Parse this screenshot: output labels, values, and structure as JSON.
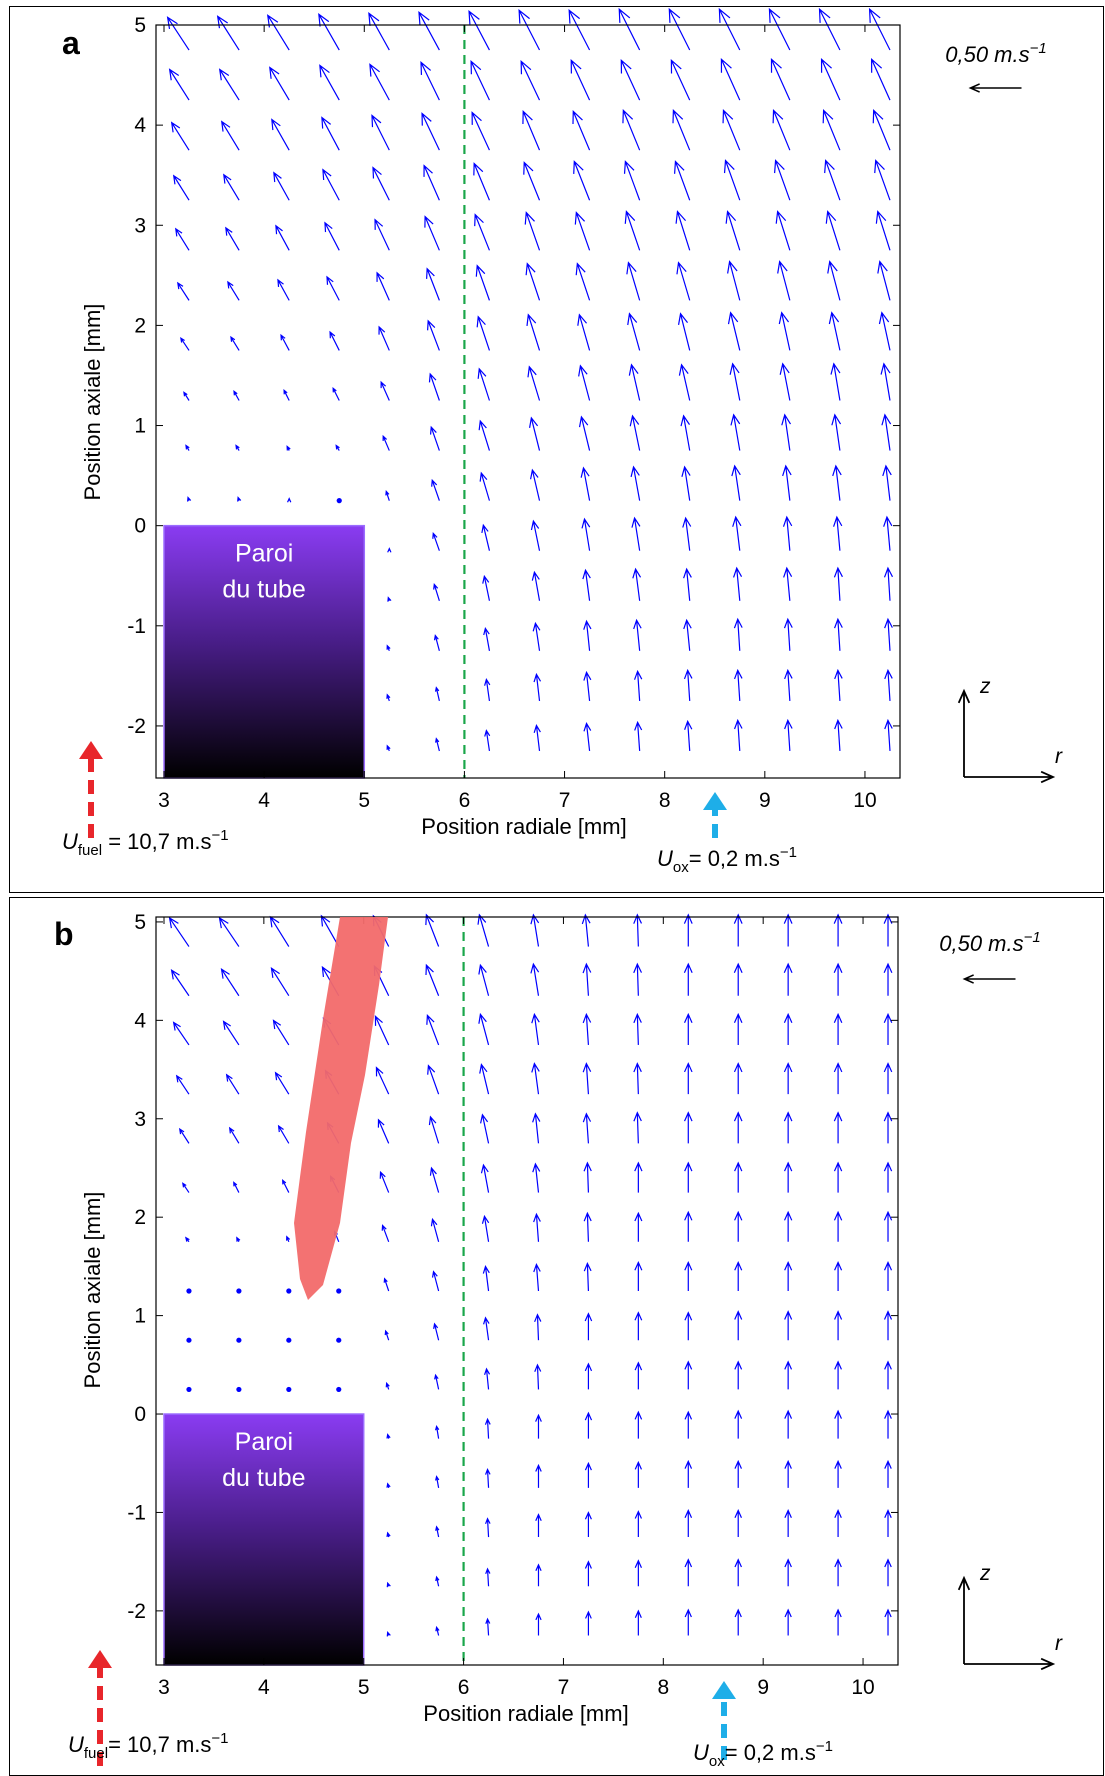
{
  "chart_data": [
    {
      "type": "quiver",
      "panel_label": "a",
      "color": "#0000ff",
      "xlabel": "Position radiale [mm]",
      "ylabel": "Position axiale [mm]",
      "xlim": [
        2.92,
        10.35
      ],
      "ylim": [
        -2.52,
        5
      ],
      "xticks": [
        3,
        4,
        5,
        6,
        7,
        8,
        9,
        10
      ],
      "yticks": [
        -2,
        -1,
        0,
        1,
        2,
        3,
        4,
        5
      ],
      "x": [
        3.25,
        3.75,
        4.25,
        4.75,
        5.25,
        5.75,
        6.25,
        6.75,
        7.25,
        7.75,
        8.25,
        8.75,
        9.25,
        9.75,
        10.25
      ],
      "y": [
        -2.25,
        -1.75,
        -1.25,
        -0.75,
        -0.25,
        0.25,
        0.75,
        1.25,
        1.75,
        2.25,
        2.75,
        3.25,
        3.75,
        4.25,
        4.75
      ],
      "u": [
        [
          null,
          null,
          null,
          null,
          -0.02,
          -0.03,
          -0.03,
          -0.03,
          -0.03,
          -0.02,
          -0.02,
          -0.02,
          -0.02,
          -0.02,
          -0.02
        ],
        [
          null,
          null,
          null,
          null,
          -0.02,
          -0.03,
          -0.03,
          -0.03,
          -0.03,
          -0.02,
          -0.02,
          -0.02,
          -0.02,
          -0.02,
          -0.02
        ],
        [
          null,
          null,
          null,
          null,
          -0.02,
          -0.04,
          -0.04,
          -0.04,
          -0.03,
          -0.03,
          -0.03,
          -0.02,
          -0.02,
          -0.02,
          -0.02
        ],
        [
          null,
          null,
          null,
          null,
          -0.01,
          -0.05,
          -0.05,
          -0.05,
          -0.04,
          -0.04,
          -0.03,
          -0.03,
          -0.03,
          -0.02,
          -0.02
        ],
        [
          null,
          null,
          null,
          null,
          0,
          -0.06,
          -0.06,
          -0.06,
          -0.05,
          -0.05,
          -0.04,
          -0.04,
          -0.03,
          -0.03,
          -0.03
        ],
        [
          -0.01,
          -0.01,
          0,
          0,
          -0.03,
          -0.07,
          -0.08,
          -0.07,
          -0.06,
          -0.06,
          -0.05,
          -0.05,
          -0.04,
          -0.04,
          -0.04
        ],
        [
          -0.03,
          -0.03,
          -0.02,
          -0.03,
          -0.06,
          -0.08,
          -0.09,
          -0.08,
          -0.08,
          -0.07,
          -0.06,
          -0.06,
          -0.05,
          -0.05,
          -0.05
        ],
        [
          -0.05,
          -0.05,
          -0.05,
          -0.06,
          -0.08,
          -0.09,
          -0.1,
          -0.1,
          -0.09,
          -0.08,
          -0.08,
          -0.07,
          -0.07,
          -0.06,
          -0.06
        ],
        [
          -0.08,
          -0.08,
          -0.08,
          -0.09,
          -0.1,
          -0.11,
          -0.11,
          -0.11,
          -0.1,
          -0.1,
          -0.09,
          -0.09,
          -0.08,
          -0.08,
          -0.08
        ],
        [
          -0.11,
          -0.11,
          -0.11,
          -0.12,
          -0.12,
          -0.12,
          -0.12,
          -0.12,
          -0.12,
          -0.11,
          -0.11,
          -0.1,
          -0.1,
          -0.1,
          -0.1
        ],
        [
          -0.13,
          -0.13,
          -0.13,
          -0.14,
          -0.14,
          -0.14,
          -0.14,
          -0.13,
          -0.13,
          -0.13,
          -0.12,
          -0.12,
          -0.12,
          -0.12,
          -0.12
        ],
        [
          -0.15,
          -0.15,
          -0.15,
          -0.16,
          -0.16,
          -0.15,
          -0.15,
          -0.15,
          -0.15,
          -0.14,
          -0.14,
          -0.14,
          -0.14,
          -0.14,
          -0.14
        ],
        [
          -0.17,
          -0.17,
          -0.17,
          -0.17,
          -0.17,
          -0.17,
          -0.17,
          -0.16,
          -0.16,
          -0.16,
          -0.16,
          -0.16,
          -0.16,
          -0.16,
          -0.16
        ],
        [
          -0.19,
          -0.19,
          -0.19,
          -0.19,
          -0.19,
          -0.18,
          -0.18,
          -0.18,
          -0.18,
          -0.18,
          -0.18,
          -0.18,
          -0.18,
          -0.18,
          -0.18
        ],
        [
          -0.21,
          -0.21,
          -0.21,
          -0.2,
          -0.2,
          -0.2,
          -0.2,
          -0.2,
          -0.2,
          -0.2,
          -0.2,
          -0.2,
          -0.2,
          -0.2,
          -0.2
        ]
      ],
      "v": [
        [
          null,
          null,
          null,
          null,
          0.05,
          0.12,
          0.2,
          0.25,
          0.27,
          0.28,
          0.29,
          0.3,
          0.3,
          0.3,
          0.3
        ],
        [
          null,
          null,
          null,
          null,
          0.06,
          0.13,
          0.21,
          0.26,
          0.28,
          0.29,
          0.3,
          0.3,
          0.3,
          0.3,
          0.3
        ],
        [
          null,
          null,
          null,
          null,
          0.05,
          0.15,
          0.22,
          0.27,
          0.29,
          0.3,
          0.3,
          0.31,
          0.31,
          0.31,
          0.31
        ],
        [
          null,
          null,
          null,
          null,
          0.03,
          0.16,
          0.24,
          0.28,
          0.3,
          0.31,
          0.31,
          0.32,
          0.32,
          0.32,
          0.32
        ],
        [
          null,
          null,
          null,
          null,
          0.02,
          0.17,
          0.25,
          0.29,
          0.31,
          0.32,
          0.32,
          0.33,
          0.33,
          0.33,
          0.33
        ],
        [
          0.03,
          0.03,
          0.02,
          0,
          0.09,
          0.2,
          0.27,
          0.3,
          0.32,
          0.33,
          0.33,
          0.34,
          0.34,
          0.34,
          0.34
        ],
        [
          0.05,
          0.05,
          0.04,
          0.05,
          0.14,
          0.23,
          0.29,
          0.32,
          0.33,
          0.34,
          0.34,
          0.35,
          0.35,
          0.35,
          0.35
        ],
        [
          0.08,
          0.09,
          0.1,
          0.12,
          0.18,
          0.26,
          0.31,
          0.33,
          0.34,
          0.35,
          0.35,
          0.36,
          0.36,
          0.36,
          0.36
        ],
        [
          0.12,
          0.13,
          0.15,
          0.18,
          0.23,
          0.29,
          0.33,
          0.35,
          0.35,
          0.36,
          0.36,
          0.37,
          0.37,
          0.37,
          0.37
        ],
        [
          0.17,
          0.18,
          0.2,
          0.23,
          0.27,
          0.31,
          0.34,
          0.36,
          0.36,
          0.37,
          0.37,
          0.38,
          0.38,
          0.38,
          0.38
        ],
        [
          0.21,
          0.22,
          0.24,
          0.27,
          0.3,
          0.33,
          0.35,
          0.37,
          0.37,
          0.38,
          0.38,
          0.38,
          0.38,
          0.38,
          0.38
        ],
        [
          0.24,
          0.25,
          0.27,
          0.3,
          0.32,
          0.34,
          0.36,
          0.37,
          0.38,
          0.38,
          0.38,
          0.39,
          0.39,
          0.39,
          0.39
        ],
        [
          0.27,
          0.28,
          0.3,
          0.32,
          0.34,
          0.36,
          0.37,
          0.38,
          0.38,
          0.39,
          0.39,
          0.39,
          0.39,
          0.39,
          0.39
        ],
        [
          0.3,
          0.3,
          0.32,
          0.34,
          0.35,
          0.37,
          0.38,
          0.38,
          0.39,
          0.39,
          0.39,
          0.4,
          0.4,
          0.4,
          0.4
        ],
        [
          0.32,
          0.33,
          0.34,
          0.35,
          0.36,
          0.37,
          0.38,
          0.39,
          0.39,
          0.4,
          0.4,
          0.4,
          0.4,
          0.4,
          0.4
        ]
      ],
      "reference": {
        "value": 0.5,
        "label": "0,50 m.s",
        "label_exp": "−1"
      },
      "tube": {
        "label": [
          "Paroi",
          "du tube"
        ]
      },
      "axes_icon": {
        "z": "z",
        "r": "r"
      },
      "inlets": [
        {
          "symbol": "U",
          "sub": "fuel",
          "text": " = 10,7 m.s",
          "sup": "−1",
          "color": "#e8262b"
        },
        {
          "symbol": "U",
          "sub": "ox",
          "text": "= 0,2 m.s",
          "sup": "−1",
          "color": "#1eaee8"
        }
      ]
    },
    {
      "type": "quiver",
      "panel_label": "b",
      "color": "#0000ff",
      "xlabel": "Position radiale [mm]",
      "ylabel": "Position axiale [mm]",
      "xlim": [
        2.92,
        10.35
      ],
      "ylim": [
        -2.55,
        5.05
      ],
      "xticks": [
        3,
        4,
        5,
        6,
        7,
        8,
        9,
        10
      ],
      "yticks": [
        -2,
        -1,
        0,
        1,
        2,
        3,
        4,
        5
      ],
      "x": [
        3.25,
        3.75,
        4.25,
        4.75,
        5.25,
        5.75,
        6.25,
        6.75,
        7.25,
        7.75,
        8.25,
        8.75,
        9.25,
        9.75,
        10.25
      ],
      "y": [
        -2.25,
        -1.75,
        -1.25,
        -0.75,
        -0.25,
        0.25,
        0.75,
        1.25,
        1.75,
        2.25,
        2.75,
        3.25,
        3.75,
        4.25,
        4.75
      ],
      "u": [
        [
          null,
          null,
          null,
          null,
          -0.01,
          -0.02,
          -0.01,
          0,
          0,
          0,
          0,
          0,
          0,
          0,
          0
        ],
        [
          null,
          null,
          null,
          null,
          -0.01,
          -0.02,
          -0.01,
          0,
          0,
          0,
          0,
          0,
          0,
          0,
          0
        ],
        [
          null,
          null,
          null,
          null,
          -0.01,
          -0.02,
          -0.01,
          0,
          0,
          0,
          0,
          0,
          0,
          0,
          0
        ],
        [
          null,
          null,
          null,
          null,
          -0.01,
          -0.02,
          -0.01,
          0,
          0,
          0,
          0,
          0,
          0,
          0,
          0
        ],
        [
          null,
          null,
          null,
          null,
          -0.01,
          -0.02,
          -0.01,
          0,
          0,
          0,
          0,
          0,
          0,
          0,
          0
        ],
        [
          0,
          0,
          0,
          0,
          -0.02,
          -0.03,
          -0.02,
          -0.01,
          0,
          0,
          0,
          0,
          0,
          0,
          0
        ],
        [
          0,
          0,
          0,
          0,
          -0.03,
          -0.04,
          -0.03,
          -0.01,
          0,
          0,
          0,
          0,
          0,
          0,
          0
        ],
        [
          -0.01,
          -0.01,
          0,
          0,
          -0.04,
          -0.05,
          -0.03,
          -0.02,
          -0.01,
          0,
          0,
          0,
          0,
          0,
          0
        ],
        [
          -0.03,
          -0.02,
          -0.02,
          -0.04,
          -0.06,
          -0.06,
          -0.04,
          -0.02,
          -0.01,
          0,
          0,
          0,
          0,
          0,
          0
        ],
        [
          -0.06,
          -0.05,
          -0.06,
          -0.08,
          -0.08,
          -0.07,
          -0.05,
          -0.03,
          -0.01,
          0,
          0,
          0,
          0,
          0,
          0
        ],
        [
          -0.09,
          -0.09,
          -0.1,
          -0.11,
          -0.1,
          -0.08,
          -0.06,
          -0.03,
          -0.02,
          -0.01,
          0,
          0,
          0,
          0,
          0
        ],
        [
          -0.12,
          -0.12,
          -0.13,
          -0.13,
          -0.12,
          -0.1,
          -0.07,
          -0.04,
          -0.02,
          -0.01,
          0,
          0,
          0,
          0,
          0
        ],
        [
          -0.15,
          -0.15,
          -0.15,
          -0.15,
          -0.13,
          -0.11,
          -0.08,
          -0.04,
          -0.02,
          -0.01,
          0,
          0,
          0,
          0,
          0
        ],
        [
          -0.17,
          -0.17,
          -0.17,
          -0.16,
          -0.14,
          -0.12,
          -0.08,
          -0.05,
          -0.02,
          -0.01,
          0,
          0,
          0,
          0,
          0
        ],
        [
          -0.19,
          -0.19,
          -0.18,
          -0.17,
          -0.15,
          -0.12,
          -0.09,
          -0.05,
          -0.03,
          -0.01,
          0,
          0,
          0,
          0,
          0
        ]
      ],
      "v": [
        [
          null,
          null,
          null,
          null,
          0.03,
          0.08,
          0.16,
          0.21,
          0.23,
          0.24,
          0.25,
          0.25,
          0.25,
          0.25,
          0.25
        ],
        [
          null,
          null,
          null,
          null,
          0.03,
          0.09,
          0.17,
          0.21,
          0.24,
          0.25,
          0.26,
          0.26,
          0.26,
          0.26,
          0.26
        ],
        [
          null,
          null,
          null,
          null,
          0.04,
          0.1,
          0.18,
          0.22,
          0.24,
          0.25,
          0.26,
          0.26,
          0.26,
          0.26,
          0.26
        ],
        [
          null,
          null,
          null,
          null,
          0.04,
          0.11,
          0.18,
          0.22,
          0.24,
          0.25,
          0.26,
          0.26,
          0.26,
          0.26,
          0.26
        ],
        [
          null,
          null,
          null,
          null,
          0.04,
          0.12,
          0.19,
          0.23,
          0.25,
          0.26,
          0.26,
          0.27,
          0.27,
          0.27,
          0.27
        ],
        [
          0,
          0,
          0,
          0,
          0.06,
          0.14,
          0.2,
          0.24,
          0.25,
          0.26,
          0.27,
          0.27,
          0.27,
          0.27,
          0.27
        ],
        [
          0,
          0,
          0,
          0,
          0.09,
          0.16,
          0.22,
          0.25,
          0.26,
          0.27,
          0.27,
          0.28,
          0.28,
          0.28,
          0.28
        ],
        [
          0.01,
          0.01,
          0,
          0,
          0.12,
          0.19,
          0.24,
          0.26,
          0.27,
          0.28,
          0.28,
          0.28,
          0.28,
          0.28,
          0.28
        ],
        [
          0.04,
          0.04,
          0.05,
          0.1,
          0.16,
          0.22,
          0.25,
          0.27,
          0.28,
          0.28,
          0.29,
          0.29,
          0.29,
          0.29,
          0.29
        ],
        [
          0.09,
          0.1,
          0.12,
          0.16,
          0.2,
          0.24,
          0.27,
          0.28,
          0.29,
          0.29,
          0.29,
          0.29,
          0.29,
          0.29,
          0.29
        ],
        [
          0.14,
          0.15,
          0.17,
          0.2,
          0.23,
          0.26,
          0.28,
          0.29,
          0.29,
          0.3,
          0.3,
          0.3,
          0.3,
          0.3,
          0.3
        ],
        [
          0.18,
          0.19,
          0.21,
          0.23,
          0.26,
          0.28,
          0.29,
          0.3,
          0.3,
          0.3,
          0.3,
          0.3,
          0.3,
          0.3,
          0.3
        ],
        [
          0.22,
          0.23,
          0.24,
          0.26,
          0.28,
          0.29,
          0.3,
          0.3,
          0.3,
          0.3,
          0.3,
          0.3,
          0.3,
          0.3,
          0.3
        ],
        [
          0.25,
          0.26,
          0.27,
          0.28,
          0.29,
          0.3,
          0.3,
          0.31,
          0.31,
          0.31,
          0.31,
          0.31,
          0.31,
          0.31,
          0.31
        ],
        [
          0.28,
          0.28,
          0.29,
          0.3,
          0.3,
          0.31,
          0.31,
          0.31,
          0.31,
          0.31,
          0.31,
          0.31,
          0.31,
          0.31,
          0.31
        ]
      ],
      "reference": {
        "value": 0.5,
        "label": "0,50 m.s",
        "label_exp": "−1"
      },
      "tube": {
        "label": [
          "Paroi",
          "du tube"
        ]
      },
      "axes_icon": {
        "z": "z",
        "r": "r"
      },
      "inlets": [
        {
          "symbol": "U",
          "sub": "fuel",
          "text": "= 10,7 m.s",
          "sup": "−1",
          "color": "#e8262b"
        },
        {
          "symbol": "U",
          "sub": "ox",
          "text": "= 0,2 m.s",
          "sup": "−1",
          "color": "#1eaee8"
        }
      ]
    }
  ]
}
